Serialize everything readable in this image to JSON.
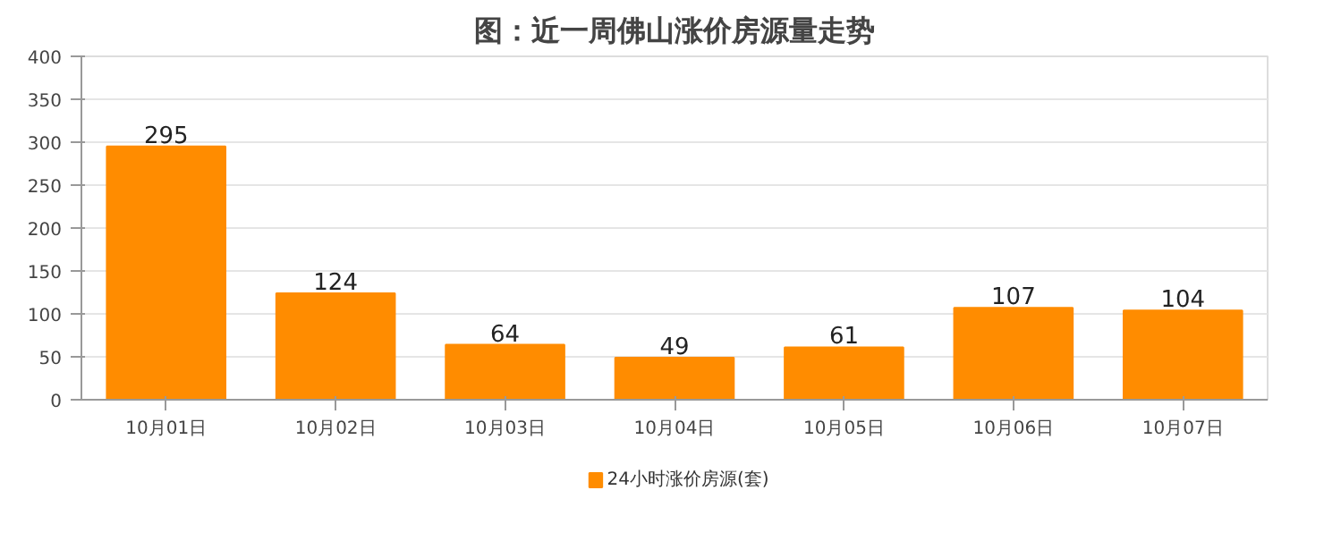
{
  "chart_data": {
    "type": "bar",
    "title": "图：近一周佛山涨价房源量走势",
    "categories": [
      "10月01日",
      "10月02日",
      "10月03日",
      "10月04日",
      "10月05日",
      "10月06日",
      "10月07日"
    ],
    "series": [
      {
        "name": "24小时涨价房源(套)",
        "color": "#ff8c00",
        "values": [
          295,
          124,
          64,
          49,
          61,
          107,
          104
        ]
      }
    ],
    "ylim": [
      0,
      400
    ],
    "yticks": [
      0,
      50,
      100,
      150,
      200,
      250,
      300,
      350,
      400
    ],
    "grid": "y",
    "legend": "bottom",
    "data_labels": true
  }
}
